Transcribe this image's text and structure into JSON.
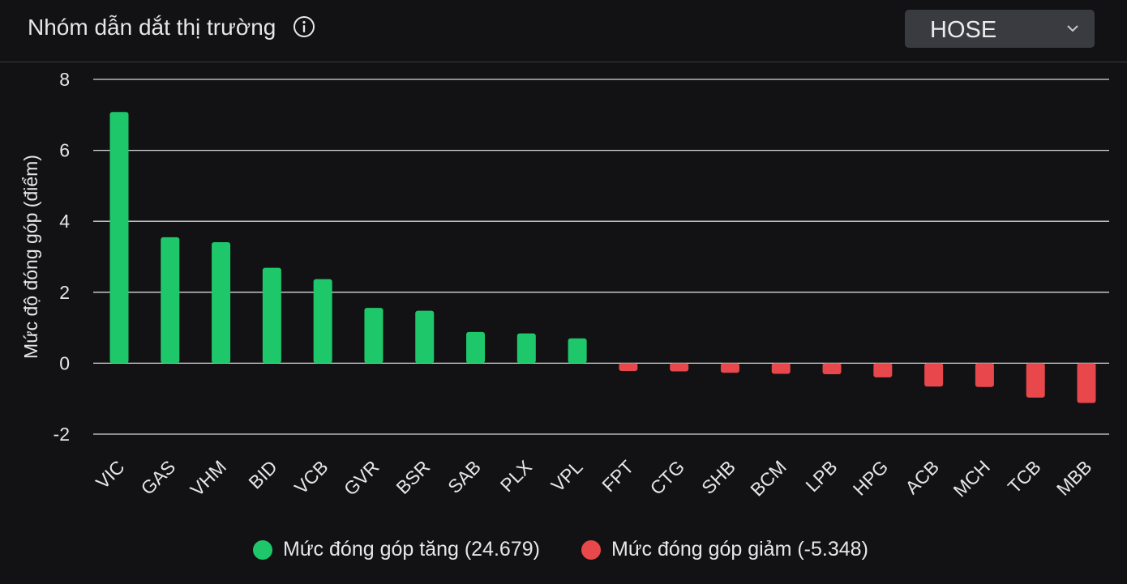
{
  "header": {
    "title": "Nhóm dẫn dắt thị trường",
    "info_icon": "info-circle-icon",
    "exchange_select": {
      "value": "HOSE",
      "icon": "chevron-down-icon"
    }
  },
  "colors": {
    "positive": "#1ec86a",
    "negative": "#e8474b",
    "grid": "#d8d8d8",
    "background": "#121214"
  },
  "chart_data": {
    "type": "bar",
    "ylabel": "Mức độ đóng góp (điểm)",
    "ylim": [
      -2,
      8
    ],
    "yticks": [
      8,
      6,
      4,
      2,
      0,
      -2
    ],
    "grid": true,
    "categories": [
      "VIC",
      "GAS",
      "VHM",
      "BID",
      "VCB",
      "GVR",
      "BSR",
      "SAB",
      "PLX",
      "VPL",
      "FPT",
      "CTG",
      "SHB",
      "BCM",
      "LPB",
      "HPG",
      "ACB",
      "MCH",
      "TCB",
      "MBB"
    ],
    "values": [
      7.08,
      3.55,
      3.41,
      2.69,
      2.37,
      1.56,
      1.48,
      0.88,
      0.84,
      0.7,
      -0.22,
      -0.23,
      -0.27,
      -0.3,
      -0.31,
      -0.4,
      -0.66,
      -0.67,
      -0.97,
      -1.12
    ],
    "series": [
      {
        "name": "Mức đóng góp tăng (24.679)",
        "color": "#1ec86a"
      },
      {
        "name": "Mức đóng góp giảm (-5.348)",
        "color": "#e8474b"
      }
    ],
    "legend_position": "bottom"
  }
}
